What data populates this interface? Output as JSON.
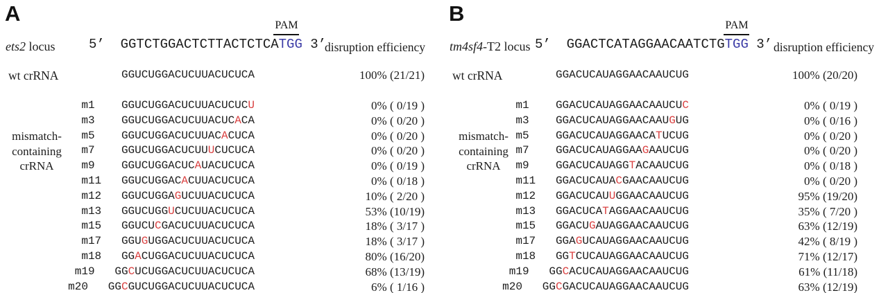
{
  "colors": {
    "mismatch_red": "#d94040",
    "pam_blue": "#3c3ca6",
    "text": "#1c1c1c"
  },
  "panels": [
    {
      "letter": "A",
      "locus_italic": "ets2",
      "locus_rest": " locus",
      "five_prime": "5’",
      "protospacer": "GGTCTGGACTCTTACTCTCA",
      "pam_seq": "TGG",
      "three_prime": "3’",
      "pam_label": "PAM",
      "efficiency_header": "disruption efficiency",
      "wt_label": "wt crRNA",
      "wt_seq": "GGUCUGGACUCUUACUCUCA",
      "wt_eff": "100% (21/21)",
      "group_label_lines": [
        "mismatch-",
        "containing",
        "crRNA"
      ],
      "rows": [
        {
          "label": "m1",
          "seq": "GGUCUGGACUCUUACUCUCU",
          "mut": 19,
          "eff": "0% ( 0/19 )"
        },
        {
          "label": "m3",
          "seq": "GGUCUGGACUCUUACUCACA",
          "mut": 17,
          "eff": "0% ( 0/20 )"
        },
        {
          "label": "m5",
          "seq": "GGUCUGGACUCUUACACUCA",
          "mut": 15,
          "eff": "0% ( 0/20 )"
        },
        {
          "label": "m7",
          "seq": "GGUCUGGACUCUUUCUCUCA",
          "mut": 13,
          "eff": "0% ( 0/20 )"
        },
        {
          "label": "m9",
          "seq": "GGUCUGGACUCAUACUCUCA",
          "mut": 11,
          "eff": "0% ( 0/19 )"
        },
        {
          "label": "m11",
          "seq": "GGUCUGGACACUUACUCUCA",
          "mut": 9,
          "eff": "0% ( 0/18 )"
        },
        {
          "label": "m12",
          "seq": "GGUCUGGAGUCUUACUCUCA",
          "mut": 8,
          "eff": "10% ( 2/20 )"
        },
        {
          "label": "m13",
          "seq": "GGUCUGGUCUCUUACUCUCA",
          "mut": 7,
          "eff": "53% (10/19)"
        },
        {
          "label": "m15",
          "seq": "GGUCUCGACUCUUACUCUCA",
          "mut": 5,
          "eff": "18% ( 3/17 )"
        },
        {
          "label": "m17",
          "seq": "GGUGUGGACUCUUACUCUCA",
          "mut": 3,
          "eff": "18% ( 3/17 )"
        },
        {
          "label": "m18",
          "seq": "GGACUGGACUCUUACUCUCA",
          "mut": 2,
          "eff": "80% (16/20)"
        },
        {
          "label": "m19",
          "seq": "GGCUCUGGACUCUUACUCUCA",
          "mut": 2,
          "eff": "68% (13/19)"
        },
        {
          "label": "m20",
          "seq": "GGCGUCUGGACUCUUACUCUCA",
          "mut": 2,
          "eff": "6% ( 1/16 )"
        }
      ]
    },
    {
      "letter": "B",
      "locus_italic": "tm4sf4",
      "locus_rest": "-T2 locus",
      "five_prime": "5’",
      "protospacer": "GGACTCATAGGAACAATCTG",
      "pam_seq": "TGG",
      "three_prime": "3’",
      "pam_label": "PAM",
      "efficiency_header": "disruption efficiency",
      "wt_label": "wt crRNA",
      "wt_seq": "GGACUCAUAGGAACAAUCUG",
      "wt_eff": "100% (20/20)",
      "group_label_lines": [
        "mismatch-",
        "containing",
        "crRNA"
      ],
      "rows": [
        {
          "label": "m1",
          "seq": "GGACUCAUAGGAACAAUCUC",
          "mut": 19,
          "eff": "0% ( 0/19 )"
        },
        {
          "label": "m3",
          "seq": "GGACUCAUAGGAACAAUGUG",
          "mut": 17,
          "eff": "0% ( 0/16 )"
        },
        {
          "label": "m5",
          "seq": "GGACUCAUAGGAACATUCUG",
          "mut": 15,
          "eff": "0% ( 0/20 )"
        },
        {
          "label": "m7",
          "seq": "GGACUCAUAGGAAGAAUCUG",
          "mut": 13,
          "eff": "0% ( 0/20 )"
        },
        {
          "label": "m9",
          "seq": "GGACUCAUAGGTACAAUCUG",
          "mut": 11,
          "eff": "0% ( 0/18 )"
        },
        {
          "label": "m11",
          "seq": "GGACUCAUACGAACAAUCUG",
          "mut": 9,
          "eff": "0% ( 0/20 )"
        },
        {
          "label": "m12",
          "seq": "GGACUCAUUGGAACAAUCUG",
          "mut": 8,
          "eff": "95% (19/20)"
        },
        {
          "label": "m13",
          "seq": "GGACUCATAGGAACAAUCUG",
          "mut": 7,
          "eff": "35% ( 7/20 )"
        },
        {
          "label": "m15",
          "seq": "GGACUGAUAGGAACAAUCUG",
          "mut": 5,
          "eff": "63% (12/19)"
        },
        {
          "label": "m17",
          "seq": "GGAGUCAUAGGAACAAUCUG",
          "mut": 3,
          "eff": "42% ( 8/19 )"
        },
        {
          "label": "m18",
          "seq": "GGTCUCAUAGGAACAAUCUG",
          "mut": 2,
          "eff": "71% (12/17)"
        },
        {
          "label": "m19",
          "seq": "GGCACUCAUAGGAACAAUCUG",
          "mut": 2,
          "eff": "61% (11/18)"
        },
        {
          "label": "m20",
          "seq": "GGCGACUCAUAGGAACAAUCUG",
          "mut": 2,
          "eff": "63% (12/19)"
        }
      ]
    }
  ]
}
